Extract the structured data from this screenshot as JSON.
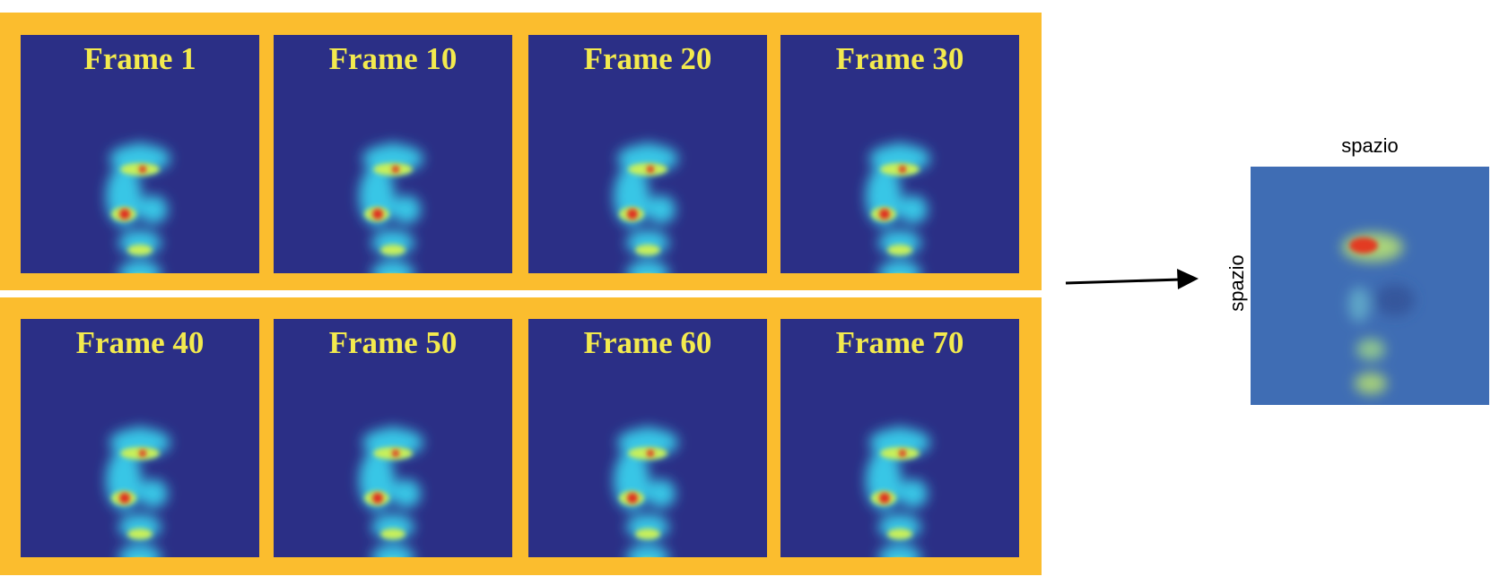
{
  "frames": [
    "Frame 1",
    "Frame 10",
    "Frame 20",
    "Frame 30",
    "Frame 40",
    "Frame 50",
    "Frame 60",
    "Frame 70"
  ],
  "result": {
    "x_label": "spazio",
    "y_label": "spazio"
  }
}
